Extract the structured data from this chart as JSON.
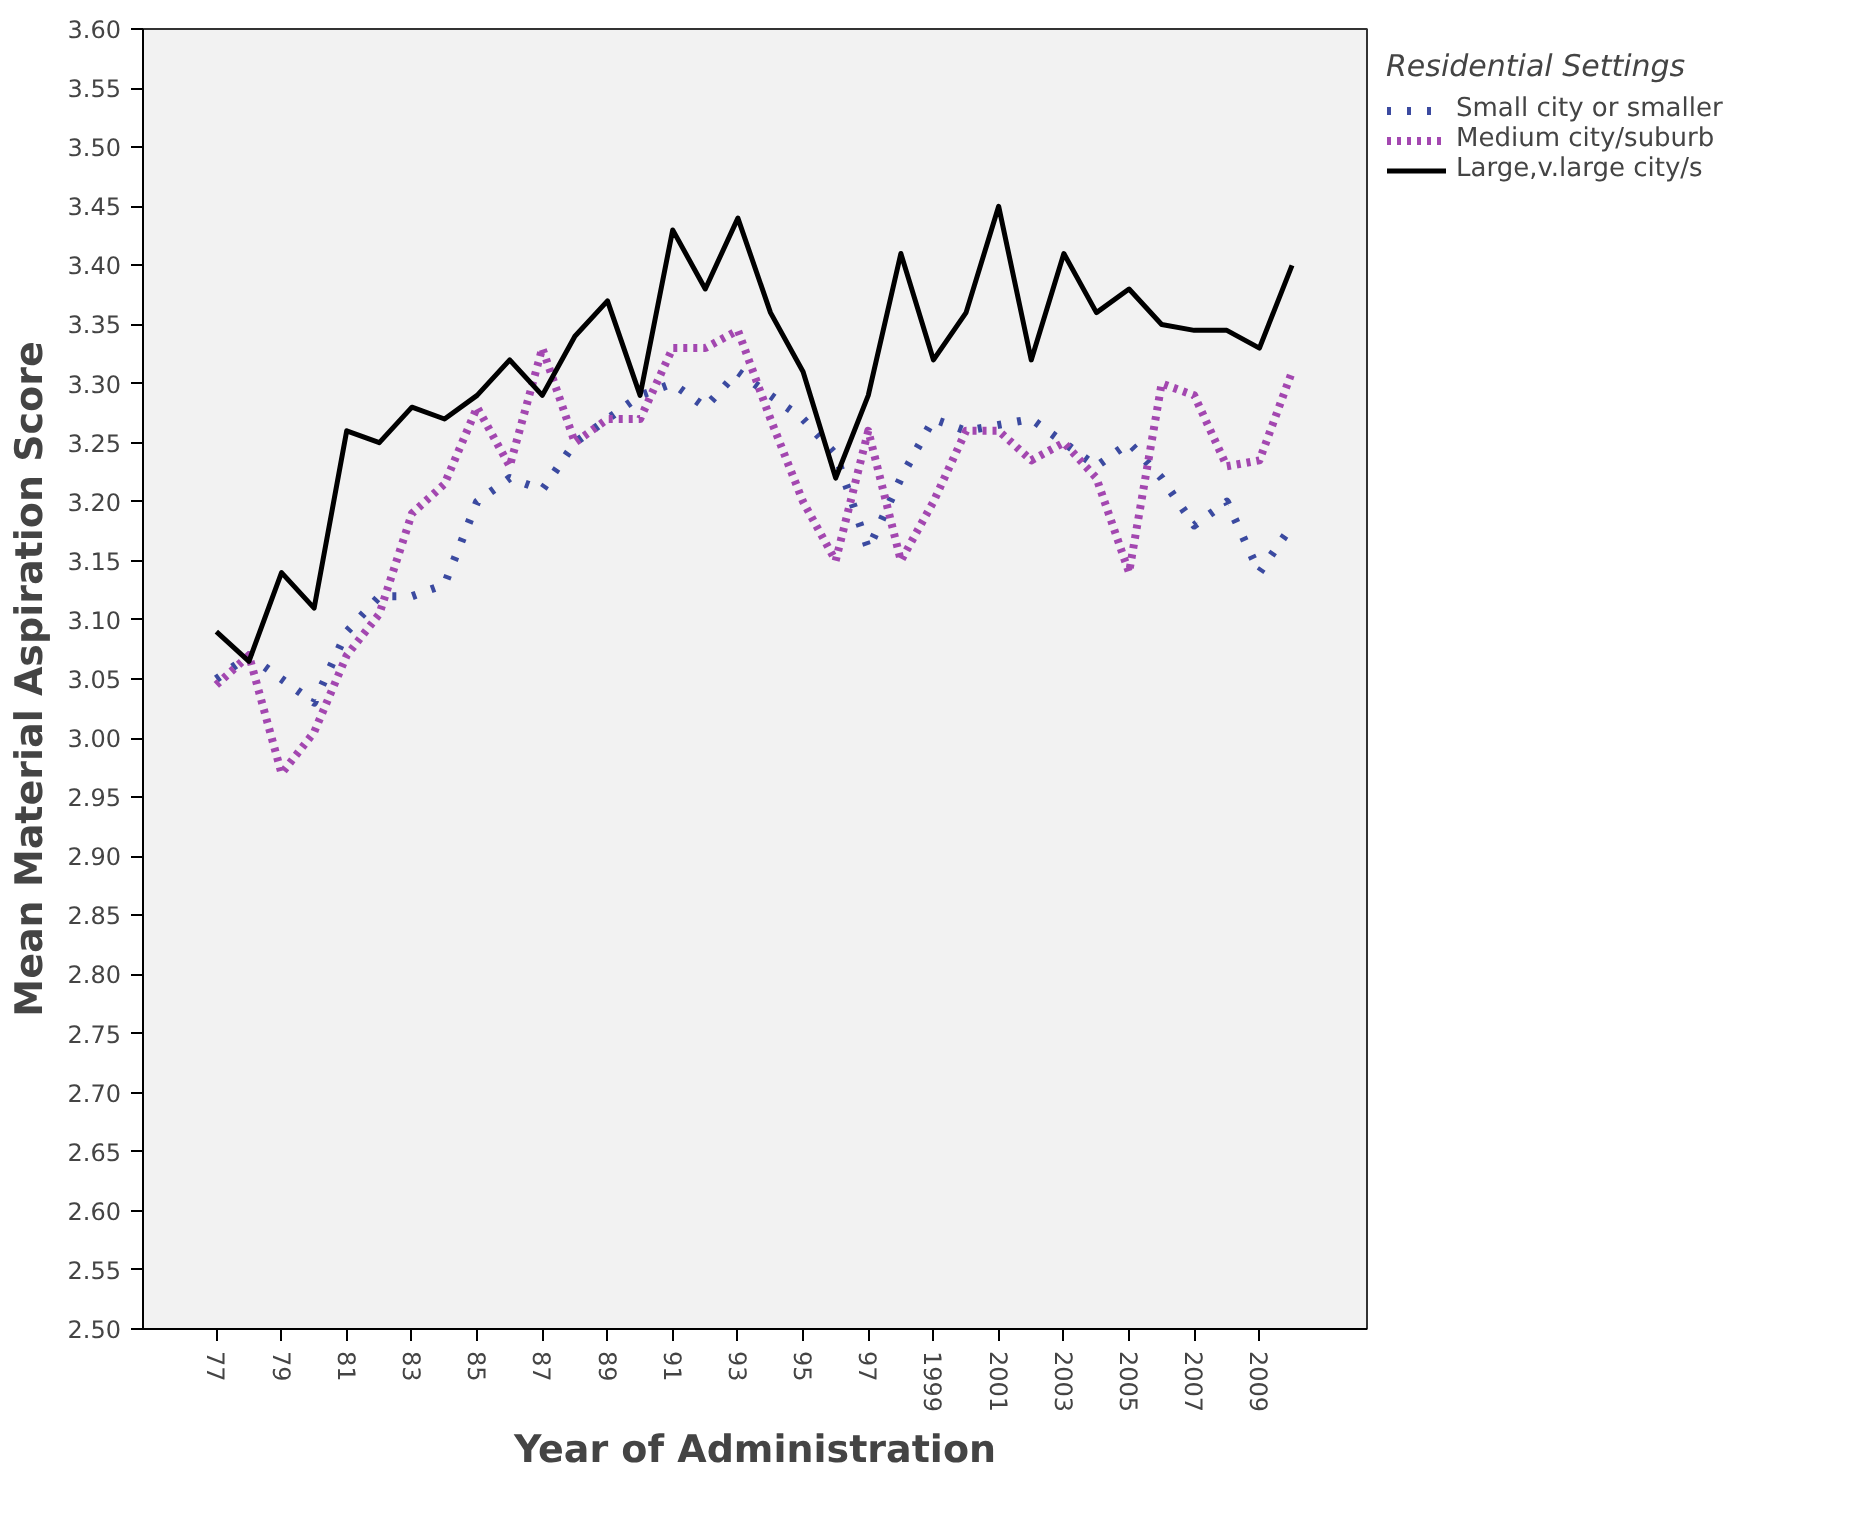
{
  "chart_data": {
    "type": "line",
    "xlabel": "Year of Administration",
    "ylabel": "Mean Material Aspiration Score",
    "legend_title": "Residential Settings",
    "categories": [
      "77",
      null,
      "79",
      null,
      "81",
      null,
      "83",
      null,
      "85",
      null,
      "87",
      null,
      "89",
      null,
      "91",
      null,
      "93",
      null,
      "95",
      null,
      "97",
      null,
      "1999",
      null,
      "2001",
      null,
      "2003",
      null,
      "2005",
      null,
      "2007",
      null,
      "2009",
      null
    ],
    "ylim": [
      2.5,
      3.6
    ],
    "yticks": [
      {
        "value": 2.5,
        "label": "2.50"
      },
      {
        "value": 2.55,
        "label": "2.55"
      },
      {
        "value": 2.6,
        "label": "2.60"
      },
      {
        "value": 2.65,
        "label": "2.65"
      },
      {
        "value": 2.7,
        "label": "2.70"
      },
      {
        "value": 2.75,
        "label": "2.75"
      },
      {
        "value": 2.8,
        "label": "2.80"
      },
      {
        "value": 2.85,
        "label": "2.85"
      },
      {
        "value": 2.9,
        "label": "2.90"
      },
      {
        "value": 2.95,
        "label": "2.95"
      },
      {
        "value": 3.0,
        "label": "3.00"
      },
      {
        "value": 3.05,
        "label": "3.05"
      },
      {
        "value": 3.1,
        "label": "3.10"
      },
      {
        "value": 3.15,
        "label": "3.15"
      },
      {
        "value": 3.2,
        "label": "3.20"
      },
      {
        "value": 3.25,
        "label": "3.25"
      },
      {
        "value": 3.3,
        "label": "3.30"
      },
      {
        "value": 3.35,
        "label": "3.35"
      },
      {
        "value": 3.4,
        "label": "3.40"
      },
      {
        "value": 3.45,
        "label": "3.45"
      },
      {
        "value": 3.5,
        "label": "3.50"
      },
      {
        "value": 3.55,
        "label": "3.55"
      },
      {
        "value": 3.6,
        "label": "3.60"
      }
    ],
    "grid": false,
    "legend": "top right",
    "series": [
      {
        "name": "Small city or smaller",
        "color": "#3b4aa0",
        "line_style": "dotted",
        "values": [
          3.05,
          3.07,
          3.05,
          3.03,
          3.09,
          3.12,
          3.12,
          3.13,
          3.2,
          3.22,
          3.21,
          3.25,
          3.27,
          3.29,
          3.3,
          3.28,
          3.31,
          3.29,
          3.27,
          3.24,
          3.16,
          3.22,
          3.27,
          3.26,
          3.265,
          3.27,
          3.25,
          3.23,
          3.25,
          3.22,
          3.18,
          3.2,
          3.14,
          3.18
        ]
      },
      {
        "name": "Medium city/suburb",
        "color": "#a347b0",
        "line_style": "dotted",
        "values": [
          3.045,
          3.07,
          2.97,
          3.005,
          3.07,
          3.105,
          3.19,
          3.215,
          3.28,
          3.23,
          3.33,
          3.25,
          3.27,
          3.27,
          3.33,
          3.33,
          3.345,
          3.27,
          3.2,
          3.15,
          3.26,
          3.15,
          3.2,
          3.26,
          3.26,
          3.235,
          3.25,
          3.22,
          3.14,
          3.3,
          3.29,
          3.23,
          3.235,
          3.31
        ]
      },
      {
        "name": "Large,v.large city/s",
        "color": "#000000",
        "line_style": "solid",
        "values": [
          3.09,
          3.065,
          3.14,
          3.11,
          3.26,
          3.25,
          3.28,
          3.27,
          3.29,
          3.32,
          3.29,
          3.34,
          3.37,
          3.29,
          3.43,
          3.38,
          3.44,
          3.36,
          3.31,
          3.22,
          3.29,
          3.41,
          3.32,
          3.36,
          3.45,
          3.32,
          3.41,
          3.36,
          3.38,
          3.35,
          3.345,
          3.345,
          3.33,
          3.4
        ]
      }
    ]
  }
}
